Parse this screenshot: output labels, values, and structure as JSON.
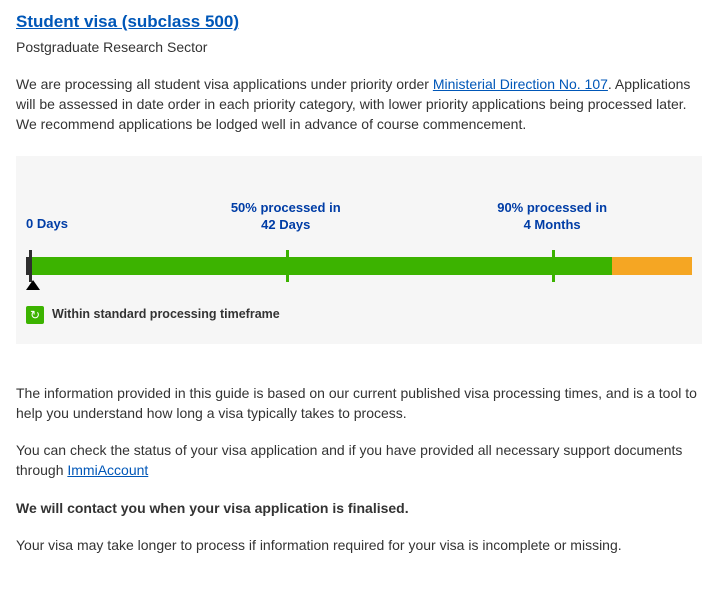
{
  "header": {
    "title": "Student visa (subclass 500)",
    "subtitle": "Postgraduate Research Sector"
  },
  "intro": {
    "pre": "We are processing all student visa applications under priority order ",
    "link": "Ministerial Direction No. 107",
    "post": ". Applications will be assessed in date order in each priority category, with lower priority applications being processed later. We recommend applications be lodged well in advance of course commencement."
  },
  "timeline": {
    "start_label": "0 Days",
    "mid_label_top": "50% processed in",
    "mid_label_bot": "42 Days",
    "right_label_top": "90% processed in",
    "right_label_bot": "4 Months",
    "bar": {
      "green_start_pct": 0.9,
      "green_end_pct": 88,
      "orange_start_pct": 88,
      "orange_end_pct": 100,
      "mid_tick_pct": 39,
      "right_tick_pct": 79,
      "green_color": "#3cb300",
      "orange_color": "#f5a623",
      "track_color": "#2e2e2e"
    },
    "legend": "Within standard processing timeframe"
  },
  "info": {
    "p1": "The information provided in this guide is based on our current published visa processing times, and is a tool to help you understand how long a visa typically takes to process.",
    "p2_pre": "You can check the status of your visa application and if you have provided all necessary support documents through ",
    "p2_link": "ImmiAccount",
    "p3": "We will contact you when your visa application is finalised.",
    "p4": "Your visa may take longer to process if information required for your visa is incomplete or missing."
  }
}
